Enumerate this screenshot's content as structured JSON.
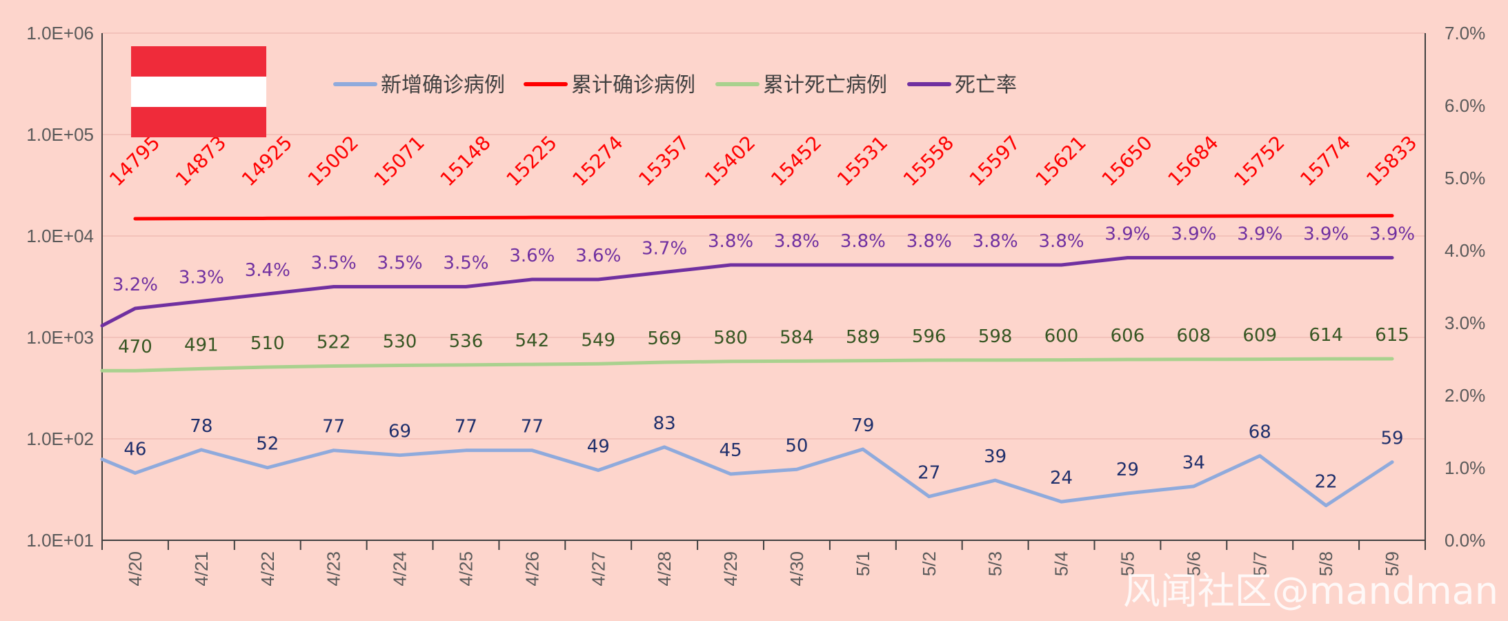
{
  "colors": {
    "background": "#fdd5cc",
    "gridline": "#f0bcb3",
    "axis": "#404040",
    "new_cases": "#8faadc",
    "cumulative_cases": "#ff0000",
    "cumulative_deaths": "#a9d18e",
    "death_rate": "#7030a0",
    "label_new_cases": "#1f2f6b",
    "label_cumulative_cases": "#ff0000",
    "label_cumulative_deaths": "#375623",
    "label_death_rate": "#7030a0",
    "flag_red": "#ef2b3a",
    "flag_white": "#ffffff"
  },
  "flag_icon": "austria-flag-icon",
  "watermark": "风闻社区@mandman",
  "chart_data": {
    "type": "line",
    "categories": [
      "4/20",
      "4/21",
      "4/22",
      "4/23",
      "4/24",
      "4/25",
      "4/26",
      "4/27",
      "4/28",
      "4/29",
      "4/30",
      "5/1",
      "5/2",
      "5/3",
      "5/4",
      "5/5",
      "5/6",
      "5/7",
      "5/8",
      "5/9"
    ],
    "y_left": {
      "scale": "log",
      "range": [
        10,
        1000000
      ],
      "tick_labels": [
        "1.0E+01",
        "1.0E+02",
        "1.0E+03",
        "1.0E+04",
        "1.0E+05",
        "1.0E+06"
      ]
    },
    "y_right": {
      "scale": "linear",
      "range": [
        0,
        7
      ],
      "tick_labels": [
        "0.0%",
        "1.0%",
        "2.0%",
        "3.0%",
        "4.0%",
        "5.0%",
        "6.0%",
        "7.0%"
      ]
    },
    "grid": true,
    "legend_position": "top",
    "series": [
      {
        "name": "新增确诊病例",
        "axis": "left",
        "values": [
          46,
          78,
          52,
          77,
          69,
          77,
          77,
          49,
          83,
          45,
          50,
          79,
          27,
          39,
          24,
          29,
          34,
          68,
          22,
          59
        ],
        "labels": [
          "46",
          "78",
          "52",
          "77",
          "69",
          "77",
          "77",
          "49",
          "83",
          "45",
          "50",
          "79",
          "27",
          "39",
          "24",
          "29",
          "34",
          "68",
          "22",
          "59"
        ]
      },
      {
        "name": "累计确诊病例",
        "axis": "left",
        "values": [
          14795,
          14873,
          14925,
          15002,
          15071,
          15148,
          15225,
          15274,
          15357,
          15402,
          15452,
          15531,
          15558,
          15597,
          15621,
          15650,
          15684,
          15752,
          15774,
          15833
        ],
        "labels": [
          "14795",
          "14873",
          "14925",
          "15002",
          "15071",
          "15148",
          "15225",
          "15274",
          "15357",
          "15402",
          "15452",
          "15531",
          "15558",
          "15597",
          "15621",
          "15650",
          "15684",
          "15752",
          "15774",
          "15833"
        ]
      },
      {
        "name": "累计死亡病例",
        "axis": "left",
        "values": [
          470,
          491,
          510,
          522,
          530,
          536,
          542,
          549,
          569,
          580,
          584,
          589,
          596,
          598,
          600,
          606,
          608,
          609,
          614,
          615
        ],
        "labels": [
          "470",
          "491",
          "510",
          "522",
          "530",
          "536",
          "542",
          "549",
          "569",
          "580",
          "584",
          "589",
          "596",
          "598",
          "600",
          "606",
          "608",
          "609",
          "614",
          "615"
        ]
      },
      {
        "name": "死亡率",
        "axis": "right",
        "values": [
          3.2,
          3.3,
          3.4,
          3.5,
          3.5,
          3.5,
          3.6,
          3.6,
          3.7,
          3.8,
          3.8,
          3.8,
          3.8,
          3.8,
          3.8,
          3.9,
          3.9,
          3.9,
          3.9,
          3.9
        ],
        "labels": [
          "3.2%",
          "3.3%",
          "3.4%",
          "3.5%",
          "3.5%",
          "3.5%",
          "3.6%",
          "3.6%",
          "3.7%",
          "3.8%",
          "3.8%",
          "3.8%",
          "3.8%",
          "3.8%",
          "3.8%",
          "3.9%",
          "3.9%",
          "3.9%",
          "3.9%",
          "3.9%"
        ]
      }
    ]
  }
}
